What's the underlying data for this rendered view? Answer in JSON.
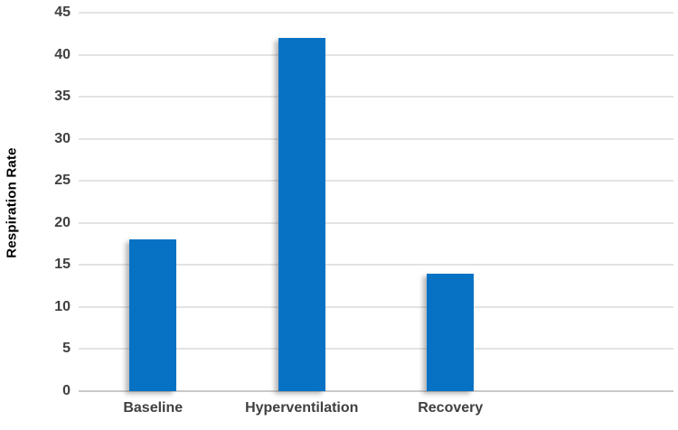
{
  "chart_data": {
    "type": "bar",
    "title": "",
    "categories": [
      "Baseline",
      "Hyperventilation",
      "Recovery"
    ],
    "values": [
      18,
      42,
      14
    ],
    "xlabel": "",
    "ylabel": "Respiration Rate",
    "ylim": [
      0,
      45
    ],
    "yticks": [
      0,
      5,
      10,
      15,
      20,
      25,
      30,
      35,
      40,
      45
    ],
    "grid": "horizontal",
    "legend": "none",
    "category_slots": 4,
    "bar_color": "#0772C4",
    "gridline_color": "#e3e3e3",
    "axis_line_color": "#c9c9c9",
    "tick_text_color": "#404040",
    "axis_title_color": "#000000"
  }
}
